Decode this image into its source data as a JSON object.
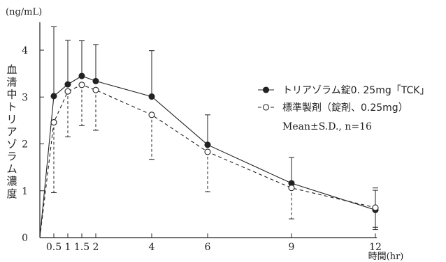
{
  "chart_data": {
    "type": "line",
    "y_unit": "(ng/mL)",
    "ylabel": "血清中トリアゾラム濃度",
    "xlabel": "時間(hr)",
    "xlim": [
      0,
      12
    ],
    "ylim": [
      0,
      4.6
    ],
    "x_ticks": [
      0.5,
      1,
      1.5,
      2,
      4,
      6,
      9,
      12
    ],
    "x_tick_labels": [
      "0.5",
      "1",
      "1.5",
      "2",
      "4",
      "6",
      "9",
      "12"
    ],
    "y_ticks": [
      0,
      1,
      2,
      3,
      4
    ],
    "y_tick_labels": [
      "0",
      "1",
      "2",
      "3",
      "4"
    ],
    "grid": false,
    "legend_position": "right",
    "series": [
      {
        "name": "トリアゾラム錠0. 25mg「TCK」",
        "marker": "filled-circle",
        "line_style": "solid",
        "color": "#222222",
        "x": [
          0,
          0.5,
          1,
          1.5,
          2,
          4,
          6,
          9,
          12
        ],
        "y": [
          0,
          3.02,
          3.27,
          3.45,
          3.34,
          3.01,
          1.98,
          1.16,
          0.59
        ],
        "sd": [
          0,
          1.48,
          0.94,
          0.75,
          0.78,
          0.98,
          0.64,
          0.55,
          0.42
        ]
      },
      {
        "name": "標準製剤（錠剤、0.25mg）",
        "marker": "open-circle",
        "line_style": "dashed",
        "color": "#222222",
        "x": [
          0,
          0.5,
          1,
          1.5,
          2,
          4,
          6,
          9,
          12
        ],
        "y": [
          0,
          2.46,
          3.12,
          3.26,
          3.15,
          2.62,
          1.83,
          1.06,
          0.64
        ],
        "sd": [
          0,
          1.5,
          0.97,
          0.87,
          0.86,
          0.95,
          0.85,
          0.66,
          0.42
        ]
      }
    ],
    "note": "Mean±S.D., n=16"
  }
}
